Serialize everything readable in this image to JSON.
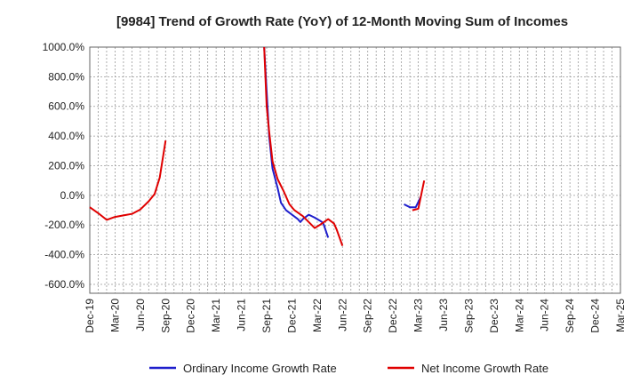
{
  "chart_data": {
    "type": "line",
    "title": "[9984]  Trend of Growth Rate (YoY) of 12-Month Moving Sum of Incomes",
    "xlabel": "",
    "ylabel": "",
    "ylim": [
      -660,
      1000
    ],
    "y_ticks": [
      "1000.0%",
      "800.0%",
      "600.0%",
      "400.0%",
      "200.0%",
      "0.0%",
      "-200.0%",
      "-400.0%",
      "-600.0%"
    ],
    "y_tick_values": [
      1000,
      800,
      600,
      400,
      200,
      0,
      -200,
      -400,
      -600
    ],
    "x_ticks": [
      "Dec-19",
      "Mar-20",
      "Jun-20",
      "Sep-20",
      "Dec-20",
      "Mar-21",
      "Jun-21",
      "Sep-21",
      "Dec-21",
      "Mar-22",
      "Jun-22",
      "Sep-22",
      "Dec-22",
      "Mar-23",
      "Jun-23",
      "Sep-23",
      "Dec-23",
      "Mar-24",
      "Jun-24",
      "Sep-24",
      "Dec-24",
      "Mar-25"
    ],
    "grid": true,
    "legend_position": "bottom",
    "series": [
      {
        "name": "Ordinary Income Growth Rate",
        "color": "#1f1fcc",
        "segments": [
          [
            [
              20.7,
              1000
            ],
            [
              21.0,
              700
            ],
            [
              21.3,
              400
            ],
            [
              21.7,
              180
            ],
            [
              22.3,
              50
            ],
            [
              22.7,
              -50
            ],
            [
              23.3,
              -100
            ],
            [
              24.7,
              -160
            ],
            [
              25.0,
              -180
            ],
            [
              25.3,
              -160
            ],
            [
              26.0,
              -130
            ],
            [
              26.7,
              -150
            ],
            [
              27.3,
              -170
            ],
            [
              27.7,
              -185
            ],
            [
              28.3,
              -285
            ]
          ],
          [
            [
              37.3,
              -60
            ],
            [
              38.0,
              -80
            ],
            [
              38.7,
              -80
            ],
            [
              39.3,
              -10
            ]
          ]
        ]
      },
      {
        "name": "Net Income Growth Rate",
        "color": "#e00000",
        "segments": [
          [
            [
              0,
              -80
            ],
            [
              1.0,
              -120
            ],
            [
              2.0,
              -165
            ],
            [
              3.0,
              -145
            ],
            [
              4.0,
              -135
            ],
            [
              5.0,
              -125
            ],
            [
              6.0,
              -95
            ],
            [
              7.0,
              -40
            ],
            [
              7.7,
              10
            ],
            [
              8.3,
              120
            ],
            [
              9.0,
              370
            ]
          ],
          [
            [
              20.7,
              1000
            ],
            [
              21.0,
              600
            ],
            [
              21.3,
              430
            ],
            [
              21.7,
              230
            ],
            [
              22.3,
              110
            ],
            [
              23.0,
              30
            ],
            [
              23.7,
              -60
            ],
            [
              24.3,
              -100
            ],
            [
              25.3,
              -140
            ],
            [
              26.0,
              -180
            ],
            [
              26.7,
              -220
            ],
            [
              27.3,
              -200
            ],
            [
              28.3,
              -160
            ],
            [
              29.0,
              -190
            ],
            [
              29.3,
              -230
            ],
            [
              30.0,
              -340
            ]
          ],
          [
            [
              38.3,
              -100
            ],
            [
              39.0,
              -90
            ],
            [
              39.7,
              100
            ]
          ]
        ]
      }
    ]
  }
}
